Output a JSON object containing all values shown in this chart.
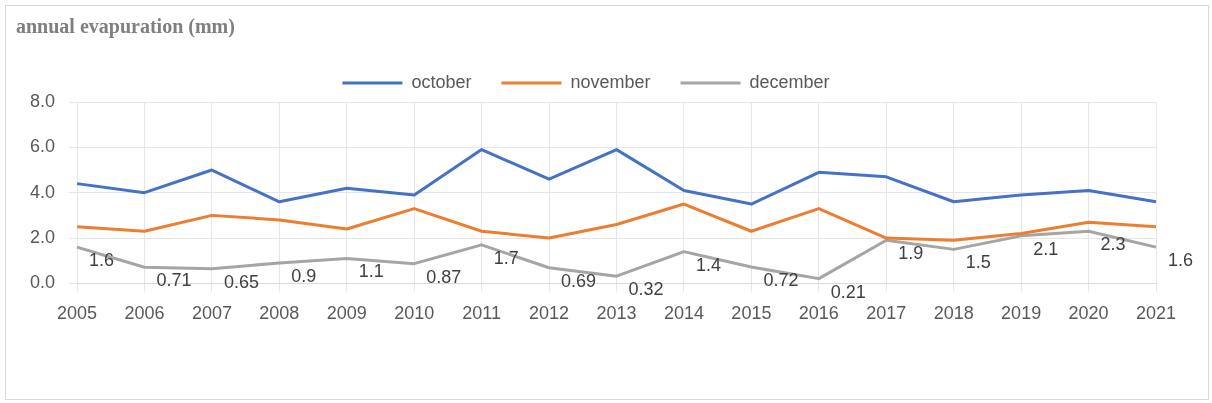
{
  "chart_data": {
    "type": "line",
    "title": "annual evapuration (mm)",
    "categories": [
      "2005",
      "2006",
      "2007",
      "2008",
      "2009",
      "2010",
      "2011",
      "2012",
      "2013",
      "2014",
      "2015",
      "2016",
      "2017",
      "2018",
      "2019",
      "2020",
      "2021"
    ],
    "series": [
      {
        "name": "october",
        "color": "#4472c4",
        "values": [
          4.4,
          4.0,
          5.0,
          3.6,
          4.2,
          3.9,
          5.9,
          4.6,
          5.9,
          4.1,
          3.5,
          4.9,
          4.7,
          3.6,
          3.9,
          4.1,
          3.6
        ]
      },
      {
        "name": "november",
        "color": "#ed7d31",
        "values": [
          2.5,
          2.3,
          3.0,
          2.8,
          2.4,
          3.3,
          2.3,
          2.0,
          2.6,
          3.5,
          2.3,
          3.3,
          2.0,
          1.9,
          2.2,
          2.7,
          2.5
        ]
      },
      {
        "name": "december",
        "color": "#a5a5a5",
        "data_labels": true,
        "values": [
          1.6,
          0.71,
          0.65,
          0.9,
          1.1,
          0.87,
          1.7,
          0.69,
          0.32,
          1.4,
          0.72,
          0.21,
          1.9,
          1.5,
          2.1,
          2.3,
          1.6
        ]
      }
    ],
    "ylim": [
      0,
      8
    ],
    "yticks": [
      {
        "value": 0,
        "label": "0.0"
      },
      {
        "value": 2,
        "label": "2.0"
      },
      {
        "value": 4,
        "label": "4.0"
      },
      {
        "value": 6,
        "label": "6.0"
      },
      {
        "value": 8,
        "label": "8.0"
      }
    ],
    "grid": true,
    "legend": "top",
    "marker": "none",
    "line_style": "solid"
  }
}
